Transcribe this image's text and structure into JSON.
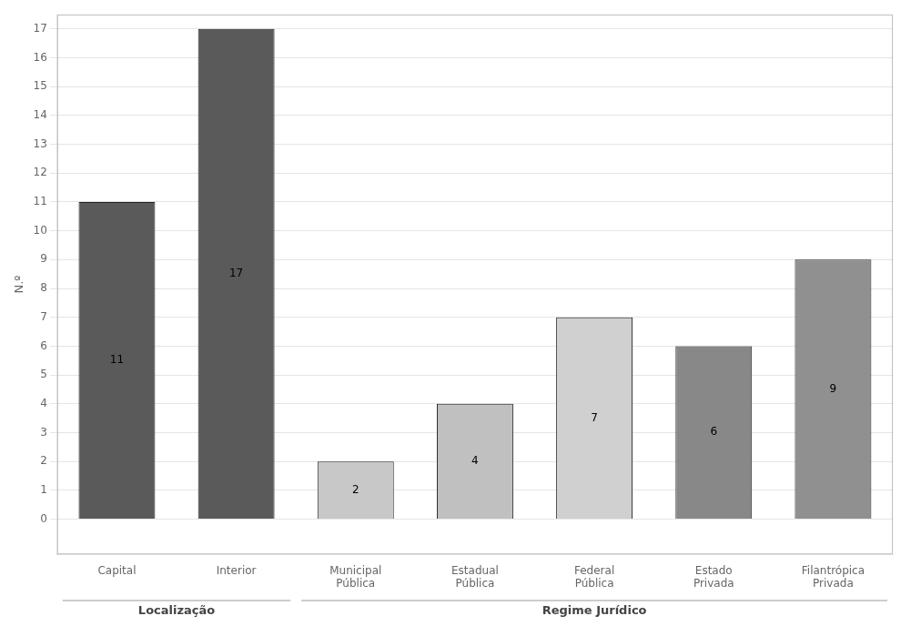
{
  "chart_data": {
    "type": "bar",
    "categories": [
      "Capital",
      "Interior",
      "Municipal\nPública",
      "Estadual\nPública",
      "Federal\nPública",
      "Estado\nPrivada",
      "Filantrópica\nPrivada"
    ],
    "values": [
      11,
      17,
      2,
      4,
      7,
      6,
      9
    ],
    "colors": [
      "#5a5a5a",
      "#5a5a5a",
      "#c8c8c8",
      "#c0c0c0",
      "#d0d0d0",
      "#888888",
      "#909090"
    ],
    "ylabel": "N.º",
    "ylim": [
      -1.22,
      17.5
    ],
    "yticks": [
      0,
      1,
      2,
      3,
      4,
      5,
      6,
      7,
      8,
      9,
      10,
      11,
      12,
      13,
      14,
      15,
      16,
      17
    ],
    "grid": true,
    "data_labels": true,
    "annotations": [
      {
        "text": "Localização",
        "categories": [
          "Capital",
          "Interior"
        ]
      },
      {
        "text": "Regime Jurídico",
        "categories": [
          "Municipal\nPública",
          "Estadual\nPública",
          "Federal\nPública",
          "Estado\nPrivada",
          "Filantrópica\nPrivada"
        ]
      }
    ]
  }
}
